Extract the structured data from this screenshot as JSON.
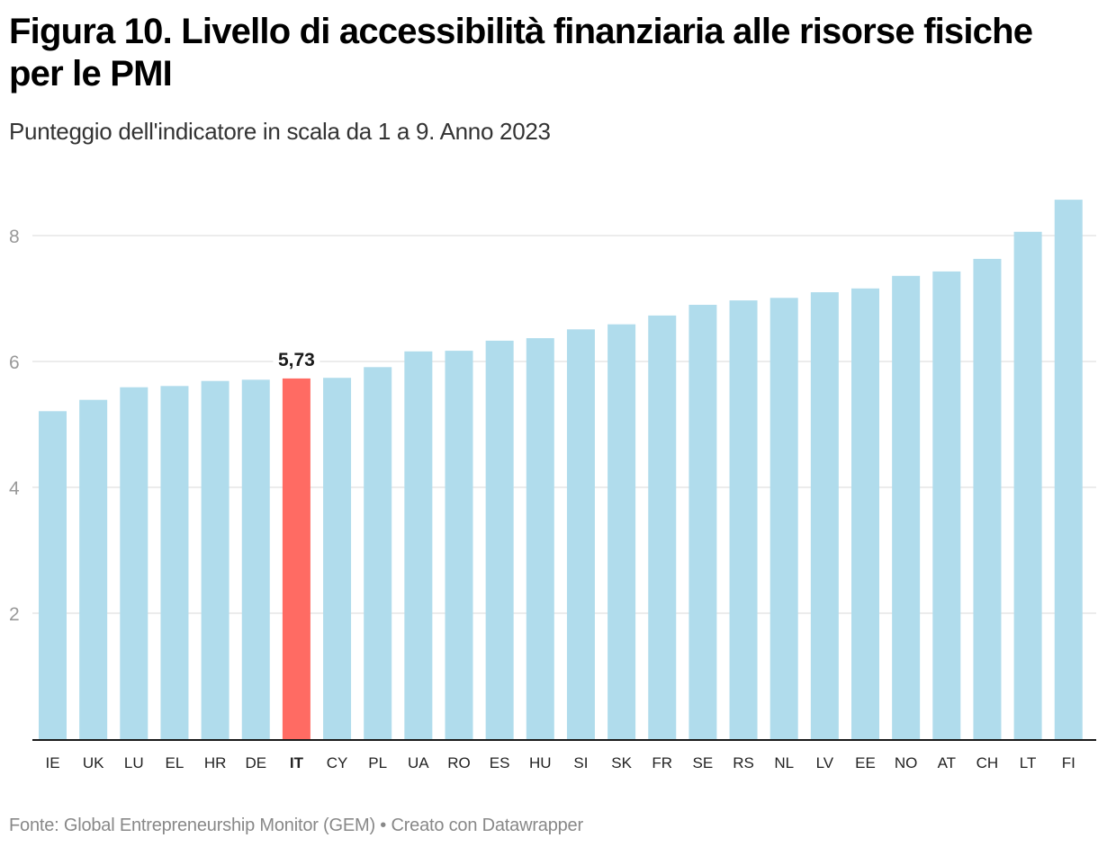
{
  "header": {
    "title": "Figura 10. Livello di accessibilità finanziaria alle risorse fisiche per le PMI",
    "subtitle": "Punteggio dell'indicatore in scala da 1 a 9. Anno 2023"
  },
  "footer": {
    "text": "Fonte: Global Entrepreneurship Monitor (GEM) • Creato con Datawrapper"
  },
  "colors": {
    "bar": "#b0dcec",
    "highlight": "#ff6b63",
    "grid": "#e6e6e6",
    "axis": "#1a1a1a"
  },
  "chart_data": {
    "type": "bar",
    "title": "Figura 10. Livello di accessibilità finanziaria alle risorse fisiche per le PMI",
    "subtitle": "Punteggio dell'indicatore in scala da 1 a 9. Anno 2023",
    "xlabel": "",
    "ylabel": "",
    "ylim": [
      0,
      8.8
    ],
    "yticks": [
      2,
      4,
      6,
      8
    ],
    "grid": true,
    "legend": "none",
    "categories": [
      "IE",
      "UK",
      "LU",
      "EL",
      "HR",
      "DE",
      "IT",
      "CY",
      "PL",
      "UA",
      "RO",
      "ES",
      "HU",
      "SI",
      "SK",
      "FR",
      "SE",
      "RS",
      "NL",
      "LV",
      "EE",
      "NO",
      "AT",
      "CH",
      "LT",
      "FI"
    ],
    "values": [
      5.21,
      5.39,
      5.59,
      5.61,
      5.69,
      5.71,
      5.73,
      5.74,
      5.91,
      6.16,
      6.17,
      6.33,
      6.37,
      6.51,
      6.59,
      6.73,
      6.9,
      6.97,
      7.01,
      7.1,
      7.16,
      7.36,
      7.43,
      7.63,
      8.06,
      8.57
    ],
    "highlight": "IT",
    "annotations": [
      {
        "category": "IT",
        "label": "5,73"
      }
    ]
  }
}
